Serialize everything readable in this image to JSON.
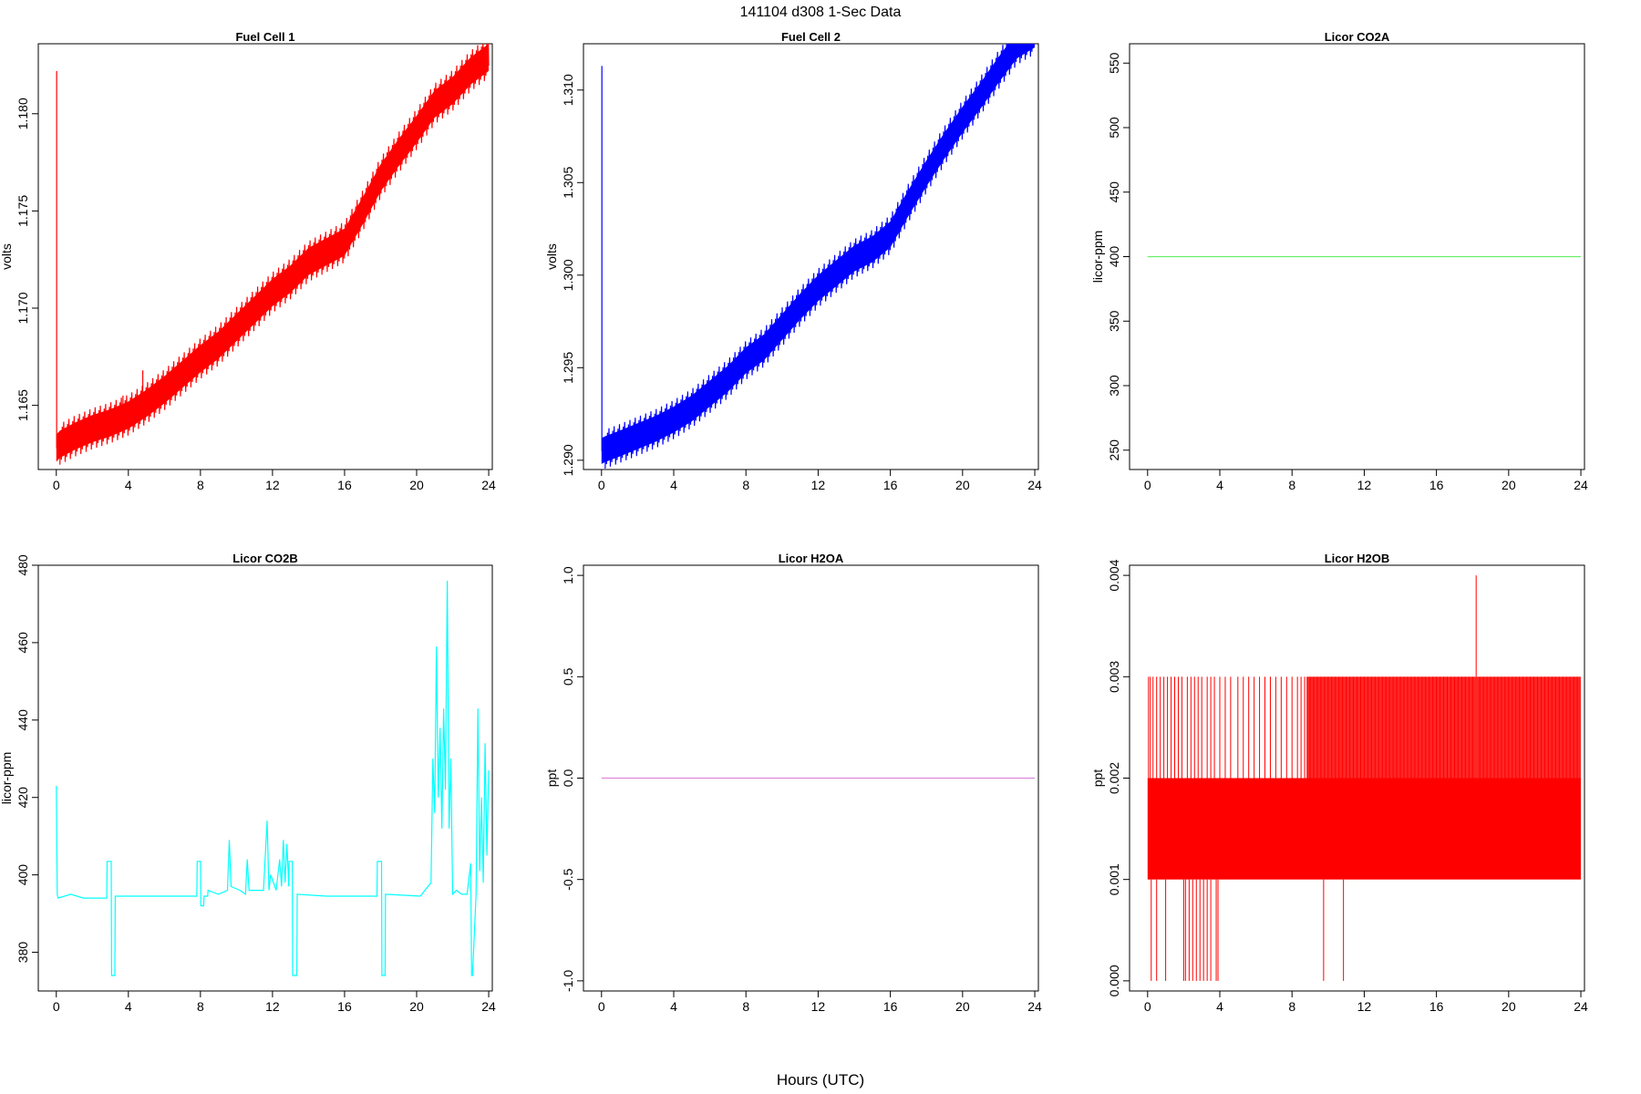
{
  "figure": {
    "title": "141104   d308   1-Sec Data",
    "xlabel": "Hours (UTC)"
  },
  "chart_data": [
    {
      "type": "line",
      "title": "Fuel Cell 1",
      "ylabel": "volts",
      "color": "#ff0000",
      "xlim": [
        -1,
        24.2
      ],
      "ylim": [
        1.1617,
        1.1836
      ],
      "xticks": [
        0,
        4,
        8,
        12,
        16,
        20,
        24
      ],
      "yticks": [
        1.165,
        1.17,
        1.175,
        1.18
      ],
      "ytick_labels": [
        "1.165",
        "1.170",
        "1.175",
        "1.180"
      ],
      "band": 0.0007,
      "spikes": [
        [
          0.02,
          1.1822
        ],
        [
          3.7,
          1.1655
        ],
        [
          4.8,
          1.1668
        ]
      ],
      "x": [
        0,
        0.2,
        1,
        2,
        3,
        4,
        5,
        6,
        7,
        8,
        9,
        10,
        11,
        12,
        13,
        14,
        15,
        16,
        17,
        18,
        19,
        20,
        21,
        22,
        23,
        24
      ],
      "y": [
        1.1628,
        1.163,
        1.1634,
        1.1638,
        1.1641,
        1.1645,
        1.1651,
        1.1658,
        1.1666,
        1.1674,
        1.1681,
        1.169,
        1.1699,
        1.1708,
        1.1715,
        1.1724,
        1.1729,
        1.1734,
        1.175,
        1.1767,
        1.178,
        1.1792,
        1.1805,
        1.1812,
        1.1822,
        1.1829
      ]
    },
    {
      "type": "line",
      "title": "Fuel Cell 2",
      "ylabel": "volts",
      "color": "#0000ff",
      "xlim": [
        -1,
        24.2
      ],
      "ylim": [
        1.2895,
        1.3125
      ],
      "xticks": [
        0,
        4,
        8,
        12,
        16,
        20,
        24
      ],
      "yticks": [
        1.29,
        1.295,
        1.3,
        1.305,
        1.31
      ],
      "ytick_labels": [
        "1.290",
        "1.295",
        "1.300",
        "1.305",
        "1.310"
      ],
      "band": 0.0007,
      "spikes": [
        [
          0.02,
          1.3113
        ]
      ],
      "x": [
        0,
        0.2,
        1,
        2,
        3,
        4,
        5,
        6,
        7,
        8,
        9,
        10,
        11,
        12,
        13,
        14,
        15,
        16,
        17,
        18,
        19,
        20,
        21,
        22,
        23,
        24
      ],
      "y": [
        1.2905,
        1.2906,
        1.2909,
        1.2913,
        1.2917,
        1.2922,
        1.2928,
        1.2936,
        1.2944,
        1.2954,
        1.2961,
        1.2972,
        1.2983,
        1.2993,
        1.3001,
        1.3009,
        1.3014,
        1.3022,
        1.3039,
        1.3055,
        1.307,
        1.3084,
        1.3097,
        1.3111,
        1.3124,
        1.313
      ]
    },
    {
      "type": "line",
      "title": "Licor CO2A",
      "ylabel": "licor-ppm",
      "color": "#66ee66",
      "xlim": [
        -1,
        24.2
      ],
      "ylim": [
        235,
        565
      ],
      "xticks": [
        0,
        4,
        8,
        12,
        16,
        20,
        24
      ],
      "yticks": [
        250,
        300,
        350,
        400,
        450,
        500,
        550
      ],
      "ytick_labels": [
        "250",
        "300",
        "350",
        "400",
        "450",
        "500",
        "550"
      ],
      "x": [
        0,
        24
      ],
      "y": [
        400,
        400
      ]
    },
    {
      "type": "line",
      "title": "Licor CO2B",
      "ylabel": "licor-ppm",
      "color": "#00ffff",
      "xlim": [
        -1,
        24.2
      ],
      "ylim": [
        370,
        480
      ],
      "xticks": [
        0,
        4,
        8,
        12,
        16,
        20,
        24
      ],
      "yticks": [
        380,
        400,
        420,
        440,
        460,
        480
      ],
      "ytick_labels": [
        "380",
        "400",
        "420",
        "440",
        "460",
        "480"
      ],
      "x": [
        0,
        0.05,
        0.1,
        0.8,
        1.5,
        2.8,
        2.82,
        3.05,
        3.07,
        3.25,
        3.27,
        5,
        7.8,
        7.82,
        8.0,
        8.02,
        8.18,
        8.2,
        8.4,
        8.42,
        9.0,
        9.5,
        9.6,
        9.7,
        10.2,
        10.5,
        10.6,
        10.7,
        11.5,
        11.7,
        11.8,
        11.9,
        12.2,
        12.4,
        12.5,
        12.6,
        12.7,
        12.8,
        12.9,
        12.92,
        13.1,
        13.12,
        13.35,
        13.37,
        15,
        17.8,
        17.82,
        18.05,
        18.07,
        18.25,
        18.27,
        20.2,
        20.8,
        20.9,
        21.0,
        21.1,
        21.2,
        21.3,
        21.4,
        21.5,
        21.6,
        21.7,
        21.8,
        21.9,
        22.0,
        22.2,
        22.5,
        22.8,
        23.0,
        23.05,
        23.1,
        23.3,
        23.32,
        23.4,
        23.5,
        23.6,
        23.7,
        23.8,
        23.9,
        24.0
      ],
      "y": [
        423,
        395,
        394,
        395,
        394,
        394,
        403.5,
        403.5,
        374,
        374,
        394.5,
        394.5,
        394.5,
        403.5,
        403.5,
        392,
        392,
        394.5,
        394.5,
        396,
        395,
        396,
        409,
        397,
        396,
        395,
        404,
        396,
        396,
        414,
        396,
        400,
        396,
        404,
        397,
        409,
        398,
        408,
        397,
        403.5,
        403.5,
        374,
        374,
        395,
        394.5,
        394.5,
        403.5,
        403.5,
        374,
        374,
        395,
        394.5,
        398,
        430,
        416,
        459,
        420,
        438,
        412,
        443,
        422,
        476,
        412,
        430,
        395,
        396,
        395,
        395,
        403,
        374,
        374,
        395,
        403,
        443,
        401,
        420,
        398,
        434,
        405,
        427
      ]
    },
    {
      "type": "line",
      "title": "Licor H2OA",
      "ylabel": "ppt",
      "color": "#dd88dd",
      "xlim": [
        -1,
        24.2
      ],
      "ylim": [
        -1.05,
        1.05
      ],
      "xticks": [
        0,
        4,
        8,
        12,
        16,
        20,
        24
      ],
      "yticks": [
        -1.0,
        -0.5,
        0.0,
        0.5,
        1.0
      ],
      "ytick_labels": [
        "-1.0",
        "-0.5",
        "0.0",
        "0.5",
        "1.0"
      ],
      "x": [
        0,
        24
      ],
      "y": [
        0,
        0
      ]
    },
    {
      "type": "line",
      "title": "Licor H2OB",
      "ylabel": "ppt",
      "color": "#ff0000",
      "xlim": [
        -1,
        24.2
      ],
      "ylim": [
        -0.0001,
        0.0041
      ],
      "xticks": [
        0,
        4,
        8,
        12,
        16,
        20,
        24
      ],
      "yticks": [
        0.0,
        0.001,
        0.002,
        0.003,
        0.004
      ],
      "ytick_labels": [
        "0.000",
        "0.001",
        "0.002",
        "0.003",
        "0.004"
      ],
      "band_range": [
        0.001,
        0.002
      ],
      "spikes_up": [
        0.05,
        0.15,
        0.3,
        0.5,
        0.7,
        0.9,
        1.1,
        1.3,
        1.5,
        1.7,
        1.9,
        2.2,
        2.4,
        2.6,
        2.8,
        3.0,
        3.3,
        3.5,
        3.7,
        4.0,
        4.3,
        4.6,
        5.0,
        5.3,
        5.6,
        5.9,
        6.2,
        6.5,
        6.8,
        7.1,
        7.4,
        7.7,
        8.0,
        8.3,
        8.5,
        8.7,
        9.0,
        9.2,
        9.4,
        9.6,
        9.8,
        10.0,
        10.2,
        10.4,
        10.6,
        10.8,
        11.0,
        11.2,
        11.4,
        11.6,
        11.8,
        12.0,
        12.2,
        12.4,
        12.6,
        12.8,
        13.0,
        13.2,
        13.4,
        13.6,
        13.8,
        14.0,
        14.2,
        14.4,
        14.6,
        14.8,
        15.0,
        15.2,
        15.4,
        15.6,
        15.8,
        16.0,
        16.2,
        16.4,
        16.6,
        16.8,
        17.0,
        17.2,
        17.4,
        17.6,
        17.8,
        18.0,
        18.4,
        18.6,
        18.8,
        19.0,
        19.2,
        19.4,
        19.6,
        19.8,
        20.0,
        20.2,
        20.4,
        20.6,
        20.8,
        21.0,
        21.2,
        21.4,
        21.6,
        21.8,
        22.0,
        22.2,
        22.4,
        22.6,
        22.8,
        23.0,
        23.2,
        23.4,
        23.6,
        23.8
      ],
      "spikes_down": [
        0.2,
        0.5,
        1.0,
        2.0,
        2.1,
        2.3,
        2.5,
        2.7,
        2.9,
        3.1,
        3.3,
        3.5,
        3.8,
        3.9,
        9.75,
        10.85
      ],
      "spike_max": [
        18.2,
        0.004
      ]
    }
  ]
}
